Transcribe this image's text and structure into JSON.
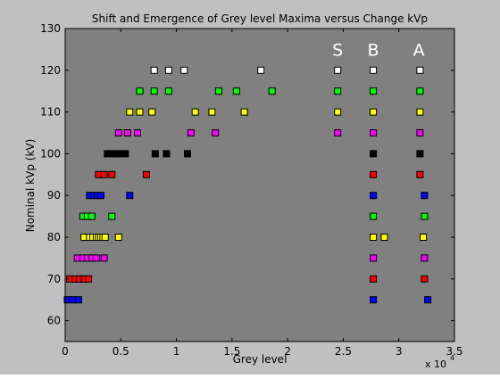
{
  "chart_data": {
    "type": "scatter",
    "title": "Shift and Emergence of Grey level Maxima versus Change kVp",
    "xlabel": "Grey level",
    "ylabel": "Nominal kVp (kV)",
    "x_multiplier_label": "x 10",
    "x_multiplier_exp": "4",
    "xlim": [
      0,
      35000
    ],
    "ylim": [
      55,
      130
    ],
    "x_ticks": [
      0,
      5000,
      10000,
      15000,
      20000,
      25000,
      30000,
      35000
    ],
    "x_tick_labels": [
      "0",
      "0.5",
      "1",
      "1.5",
      "2",
      "2.5",
      "3",
      "3.5"
    ],
    "y_ticks": [
      60,
      70,
      80,
      90,
      100,
      110,
      120,
      130
    ],
    "y_tick_labels": [
      "60",
      "70",
      "80",
      "90",
      "100",
      "110",
      "120",
      "130"
    ],
    "grid": false,
    "axes_background": "#808080",
    "figure_background": "#c0c0c0",
    "marker": "square",
    "annotations": [
      {
        "text": "S",
        "x": 24500,
        "y": 125
      },
      {
        "text": "B",
        "x": 27700,
        "y": 125
      },
      {
        "text": "A",
        "x": 31800,
        "y": 125
      }
    ],
    "series": [
      {
        "kvp": 65,
        "color": "#0000ff",
        "x": [
          200,
          700,
          1200,
          27700,
          32600
        ]
      },
      {
        "kvp": 70,
        "color": "#ff0000",
        "x": [
          400,
          900,
          1300,
          1700,
          2100,
          27700,
          32300
        ]
      },
      {
        "kvp": 75,
        "color": "#ff00ff",
        "x": [
          1100,
          1600,
          2000,
          2400,
          2800,
          3500,
          27700,
          32300
        ]
      },
      {
        "kvp": 80,
        "color": "#ffff00",
        "x": [
          1700,
          2200,
          2500,
          2800,
          3000,
          3200,
          3400,
          3600,
          4800,
          27700,
          28700,
          32200
        ]
      },
      {
        "kvp": 85,
        "color": "#00ff00",
        "x": [
          1600,
          2000,
          2400,
          4200,
          27700,
          32300
        ]
      },
      {
        "kvp": 90,
        "color": "#0000ff",
        "x": [
          2200,
          2600,
          2900,
          3200,
          5800,
          27700,
          32300
        ]
      },
      {
        "kvp": 95,
        "color": "#ff0000",
        "x": [
          3000,
          3500,
          4200,
          7300,
          27700,
          31900
        ]
      },
      {
        "kvp": 100,
        "color": "#000000",
        "x": [
          3800,
          4200,
          4600,
          5000,
          5400,
          8100,
          9100,
          11000,
          27700,
          31900
        ]
      },
      {
        "kvp": 105,
        "color": "#ff00ff",
        "x": [
          4800,
          5600,
          6500,
          11300,
          13500,
          24500,
          27700,
          31900
        ]
      },
      {
        "kvp": 110,
        "color": "#ffff00",
        "x": [
          5800,
          6700,
          7800,
          11700,
          13200,
          16100,
          24500,
          27700,
          31900
        ]
      },
      {
        "kvp": 115,
        "color": "#00ff00",
        "x": [
          6700,
          8000,
          9300,
          13800,
          15400,
          18600,
          24500,
          27700,
          31900
        ]
      },
      {
        "kvp": 120,
        "color": "#ffffff",
        "x": [
          8000,
          9300,
          10700,
          17600,
          24500,
          27700,
          31900
        ]
      }
    ]
  }
}
